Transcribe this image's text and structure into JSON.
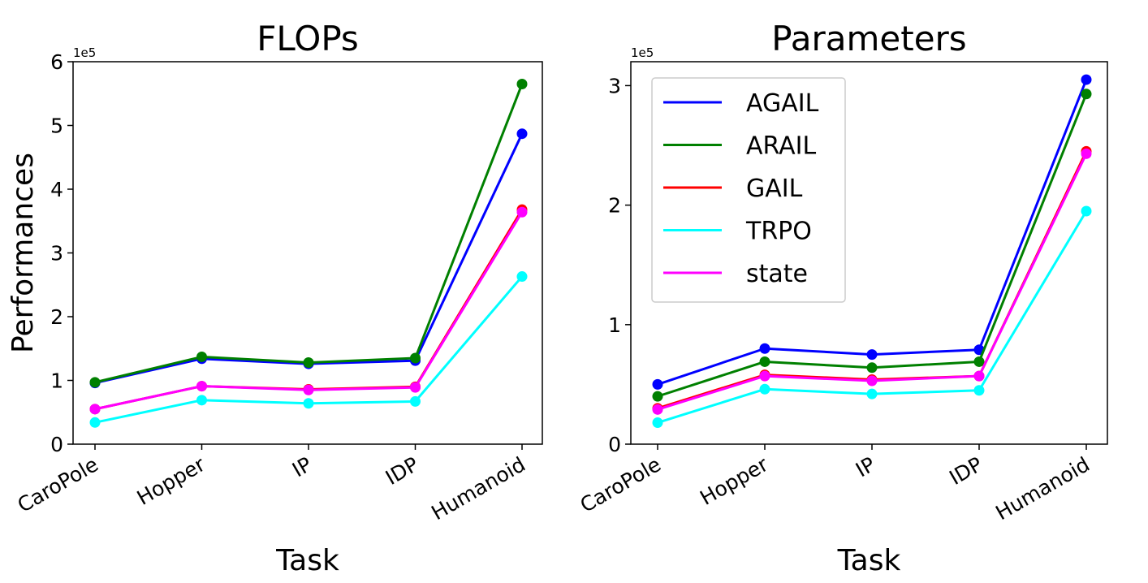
{
  "chart_data": [
    {
      "type": "line",
      "title": "FLOPs",
      "xlabel": "Task",
      "ylabel": "Performances",
      "offset_label": "1e5",
      "categories": [
        "CaroPole",
        "Hopper",
        "IP",
        "IDP",
        "Humanoid"
      ],
      "ylim": [
        0,
        6
      ],
      "yticks": [
        0,
        1,
        2,
        3,
        4,
        5,
        6
      ],
      "grid": false,
      "legend": null,
      "series": [
        {
          "name": "AGAIL",
          "color": "#0000ff",
          "values": [
            0.96,
            1.34,
            1.26,
            1.31,
            4.87
          ]
        },
        {
          "name": "ARAIL",
          "color": "#008000",
          "values": [
            0.97,
            1.37,
            1.28,
            1.35,
            5.65
          ]
        },
        {
          "name": "GAIL",
          "color": "#ff0000",
          "values": [
            0.55,
            0.91,
            0.86,
            0.9,
            3.68
          ]
        },
        {
          "name": "TRPO",
          "color": "#00ffff",
          "values": [
            0.34,
            0.69,
            0.64,
            0.67,
            2.63
          ]
        },
        {
          "name": "state",
          "color": "#ff00ff",
          "values": [
            0.55,
            0.91,
            0.85,
            0.89,
            3.64
          ]
        }
      ]
    },
    {
      "type": "line",
      "title": "Parameters",
      "xlabel": "Task",
      "ylabel": "",
      "offset_label": "1e5",
      "categories": [
        "CaroPole",
        "Hopper",
        "IP",
        "IDP",
        "Humanoid"
      ],
      "ylim": [
        0,
        3.2
      ],
      "yticks": [
        0,
        1,
        2,
        3
      ],
      "grid": false,
      "legend": "upper-left",
      "series": [
        {
          "name": "AGAIL",
          "color": "#0000ff",
          "values": [
            0.5,
            0.8,
            0.75,
            0.79,
            3.05
          ]
        },
        {
          "name": "ARAIL",
          "color": "#008000",
          "values": [
            0.4,
            0.69,
            0.64,
            0.69,
            2.93
          ]
        },
        {
          "name": "GAIL",
          "color": "#ff0000",
          "values": [
            0.3,
            0.58,
            0.54,
            0.57,
            2.45
          ]
        },
        {
          "name": "TRPO",
          "color": "#00ffff",
          "values": [
            0.18,
            0.46,
            0.42,
            0.45,
            1.95
          ]
        },
        {
          "name": "state",
          "color": "#ff00ff",
          "values": [
            0.29,
            0.57,
            0.53,
            0.57,
            2.43
          ]
        }
      ]
    }
  ]
}
